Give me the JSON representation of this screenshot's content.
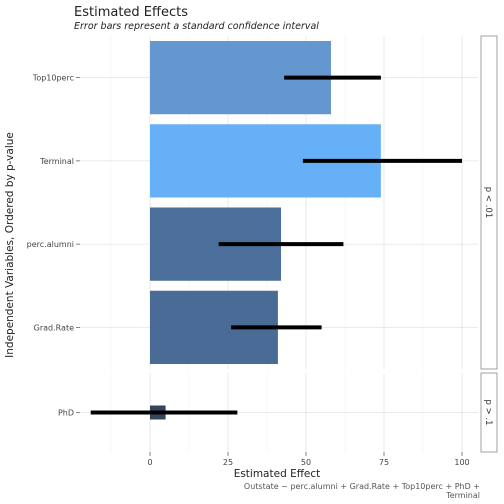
{
  "chart_data": {
    "type": "bar",
    "title": "Estimated Effects",
    "subtitle": "Error bars represent a standard confidence interval",
    "xlabel": "Estimated Effect",
    "ylabel": "Independent Variables, Ordered by p-value",
    "caption_lines": [
      "Outstate ~ perc.alumni + Grad.Rate + Top10perc + PhD +",
      "Terminal"
    ],
    "xlim": [
      -20,
      105
    ],
    "x_ticks": [
      0,
      25,
      50,
      75,
      100
    ],
    "grid": true,
    "panels": [
      {
        "strip_label": "p < .01",
        "bars": [
          {
            "name": "Top10perc",
            "value": 58,
            "ci": [
              43,
              74
            ],
            "color": "#6497cf"
          },
          {
            "name": "Terminal",
            "value": 74,
            "ci": [
              49,
              100
            ],
            "color": "#66b0f7"
          },
          {
            "name": "perc.alumni",
            "value": 42,
            "ci": [
              22,
              62
            ],
            "color": "#4c6e9b"
          },
          {
            "name": "Grad.Rate",
            "value": 41,
            "ci": [
              26,
              55
            ],
            "color": "#4a6b96"
          }
        ]
      },
      {
        "strip_label": "p > .1",
        "bars": [
          {
            "name": "PhD",
            "value": 5,
            "ci": [
              -19,
              28
            ],
            "color": "#35465a"
          }
        ]
      }
    ]
  }
}
